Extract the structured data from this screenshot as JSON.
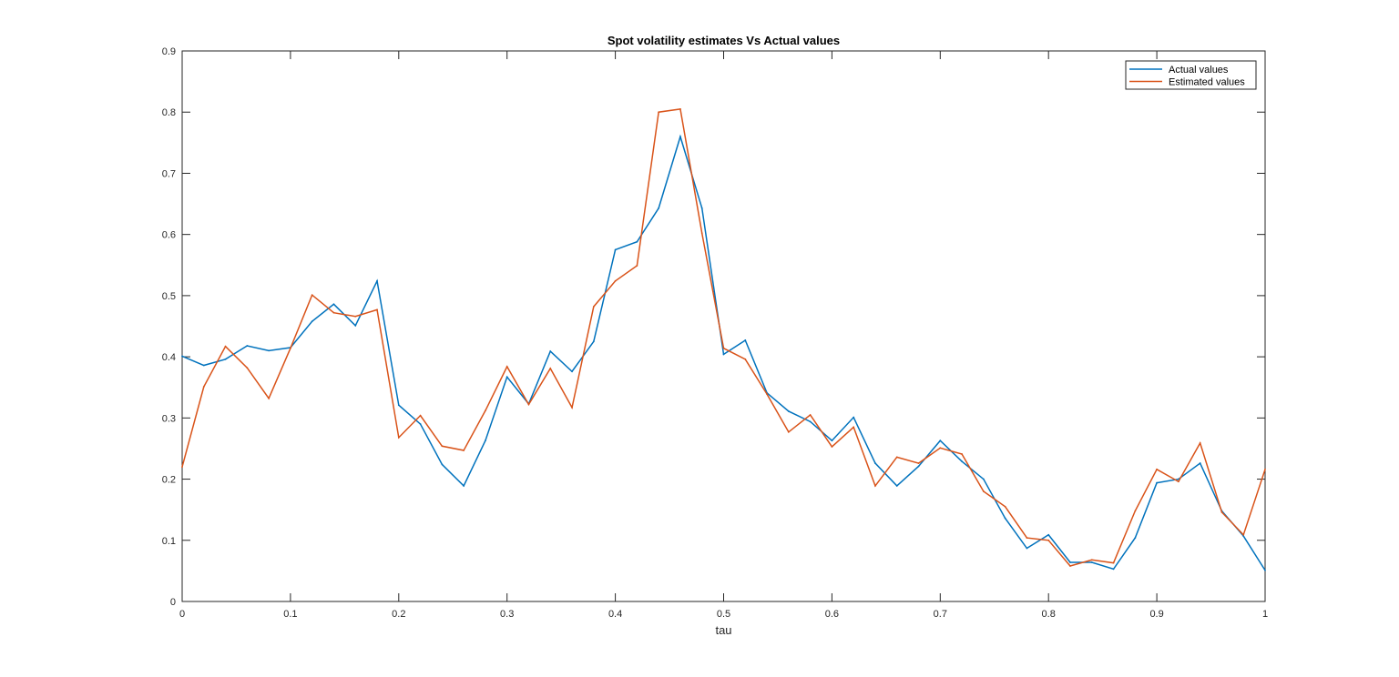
{
  "chart_data": {
    "type": "line",
    "title": "Spot volatility estimates Vs Actual values",
    "xlabel": "tau",
    "ylabel": "",
    "xlim": [
      0,
      1
    ],
    "ylim": [
      0,
      0.9
    ],
    "xticks": [
      0,
      0.1,
      0.2,
      0.3,
      0.4,
      0.5,
      0.6,
      0.7,
      0.8,
      0.9,
      1
    ],
    "xtick_labels": [
      "0",
      "0.1",
      "0.2",
      "0.3",
      "0.4",
      "0.5",
      "0.6",
      "0.7",
      "0.8",
      "0.9",
      "1"
    ],
    "yticks": [
      0,
      0.1,
      0.2,
      0.3,
      0.4,
      0.5,
      0.6,
      0.7,
      0.8,
      0.9
    ],
    "ytick_labels": [
      "0",
      "0.1",
      "0.2",
      "0.3",
      "0.4",
      "0.5",
      "0.6",
      "0.7",
      "0.8",
      "0.9"
    ],
    "grid": false,
    "legend_position": "top-right",
    "x": [
      0,
      0.02,
      0.04,
      0.06,
      0.08,
      0.1,
      0.12,
      0.14,
      0.16,
      0.18,
      0.2,
      0.22,
      0.24,
      0.26,
      0.28,
      0.3,
      0.32,
      0.34,
      0.36,
      0.38,
      0.4,
      0.42,
      0.44,
      0.46,
      0.48,
      0.5,
      0.52,
      0.54,
      0.56,
      0.58,
      0.6,
      0.62,
      0.64,
      0.66,
      0.68,
      0.7,
      0.72,
      0.74,
      0.76,
      0.78,
      0.8,
      0.82,
      0.84,
      0.86,
      0.88,
      0.9,
      0.92,
      0.94,
      0.96,
      0.98,
      1
    ],
    "series": [
      {
        "name": "Actual values",
        "color": "#0072BD",
        "values": [
          0.401,
          0.386,
          0.396,
          0.418,
          0.41,
          0.415,
          0.458,
          0.486,
          0.451,
          0.524,
          0.321,
          0.29,
          0.224,
          0.189,
          0.263,
          0.367,
          0.323,
          0.409,
          0.376,
          0.425,
          0.575,
          0.588,
          0.643,
          0.76,
          0.643,
          0.404,
          0.427,
          0.341,
          0.311,
          0.294,
          0.263,
          0.301,
          0.226,
          0.189,
          0.221,
          0.263,
          0.229,
          0.2,
          0.136,
          0.087,
          0.109,
          0.064,
          0.064,
          0.053,
          0.104,
          0.194,
          0.2,
          0.226,
          0.148,
          0.107,
          0.051
        ]
      },
      {
        "name": "Estimated values",
        "color": "#D95319",
        "values": [
          0.22,
          0.351,
          0.417,
          0.382,
          0.332,
          0.414,
          0.501,
          0.472,
          0.466,
          0.477,
          0.268,
          0.304,
          0.254,
          0.247,
          0.312,
          0.384,
          0.322,
          0.381,
          0.317,
          0.482,
          0.524,
          0.549,
          0.8,
          0.805,
          0.602,
          0.414,
          0.396,
          0.339,
          0.277,
          0.305,
          0.253,
          0.285,
          0.189,
          0.236,
          0.226,
          0.251,
          0.241,
          0.18,
          0.155,
          0.104,
          0.1,
          0.058,
          0.068,
          0.063,
          0.148,
          0.216,
          0.196,
          0.259,
          0.146,
          0.109,
          0.216
        ]
      }
    ]
  }
}
